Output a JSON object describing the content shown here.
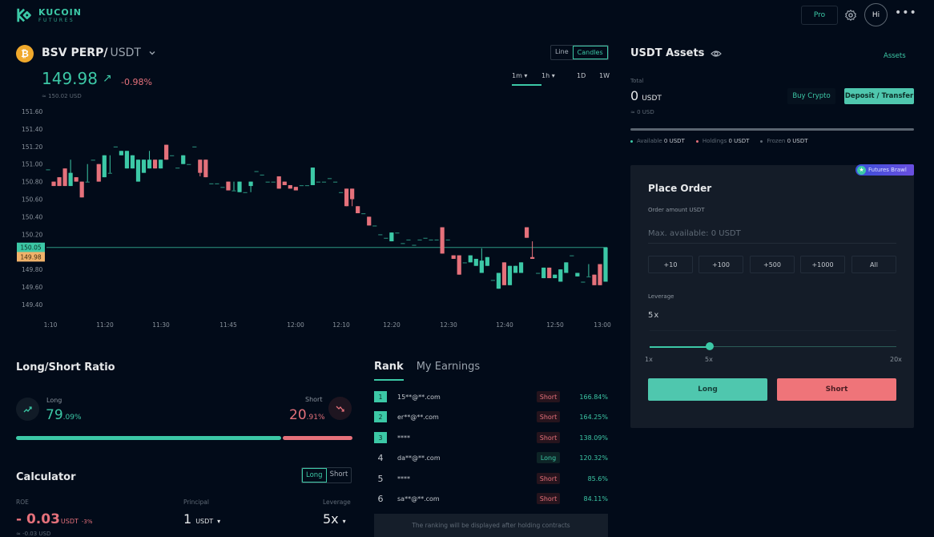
{
  "header": {
    "brand_line1": "KUCOIN",
    "brand_line2": "FUTURES",
    "pro_label": "Pro",
    "avatar_initials": "Hi",
    "more_label": "•••"
  },
  "ticker": {
    "coin_glyph": "₿",
    "base": "BSV PERP/",
    "quote": "USDT",
    "price": "149.98",
    "price_arrow": "↗",
    "change": "-0.98%",
    "usd_equiv": "≈ 150.02 USD"
  },
  "chart_controls": {
    "types": [
      "Line",
      "Candles"
    ],
    "active_type": "Candles",
    "intervals": [
      "1m ▾",
      "1h ▾",
      "1D",
      "1W"
    ],
    "active_interval": "1m"
  },
  "chart_data": {
    "type": "candlestick",
    "title": "BSV PERP/USDT 1m",
    "y_ticks": [
      "151.60",
      "151.40",
      "151.20",
      "151.00",
      "150.80",
      "150.60",
      "150.40",
      "150.20",
      "149.80",
      "149.60",
      "149.40"
    ],
    "x_ticks": [
      "1:10",
      "11:20",
      "11:30",
      "11:45",
      "12:00",
      "12:10",
      "12:20",
      "12:30",
      "12:40",
      "12:50",
      "13:00"
    ],
    "ylim": [
      149.3,
      151.7
    ],
    "price_line": 150.05,
    "price_line_label": "150.05",
    "last_price_label": "149.98",
    "candles": [
      {
        "o": 150.94,
        "c": 150.94,
        "h": 150.94,
        "l": 150.94
      },
      {
        "o": 150.8,
        "c": 150.75,
        "h": 150.8,
        "l": 150.75
      },
      {
        "o": 150.85,
        "c": 150.75,
        "h": 150.85,
        "l": 150.75
      },
      {
        "o": 150.95,
        "c": 150.75,
        "h": 150.95,
        "l": 150.75
      },
      {
        "o": 150.75,
        "c": 150.9,
        "h": 151.05,
        "l": 150.75
      },
      {
        "o": 150.85,
        "c": 150.8,
        "h": 150.85,
        "l": 150.8
      },
      {
        "o": 150.8,
        "c": 150.62,
        "h": 150.8,
        "l": 150.62
      },
      {
        "o": 150.8,
        "c": 150.8,
        "h": 151.0,
        "l": 150.8
      },
      {
        "o": 151.05,
        "c": 151.05,
        "h": 151.05,
        "l": 151.05
      },
      {
        "o": 151.0,
        "c": 150.8,
        "h": 151.0,
        "l": 150.8
      },
      {
        "o": 150.85,
        "c": 151.1,
        "h": 151.1,
        "l": 150.85
      },
      {
        "o": 150.9,
        "c": 150.9,
        "h": 151.1,
        "l": 150.9
      },
      {
        "o": 151.2,
        "c": 151.2,
        "h": 151.2,
        "l": 151.2
      },
      {
        "o": 151.1,
        "c": 151.15,
        "h": 151.15,
        "l": 151.1
      },
      {
        "o": 150.95,
        "c": 151.15,
        "h": 151.15,
        "l": 150.95
      },
      {
        "o": 150.95,
        "c": 151.1,
        "h": 151.1,
        "l": 150.95
      },
      {
        "o": 150.8,
        "c": 151.05,
        "h": 151.05,
        "l": 150.8
      },
      {
        "o": 150.9,
        "c": 151.05,
        "h": 151.05,
        "l": 150.9
      },
      {
        "o": 150.95,
        "c": 151.05,
        "h": 151.15,
        "l": 150.95
      },
      {
        "o": 151.05,
        "c": 150.95,
        "h": 151.05,
        "l": 150.95
      },
      {
        "o": 150.95,
        "c": 151.05,
        "h": 151.05,
        "l": 150.95
      },
      {
        "o": 151.22,
        "c": 151.05,
        "h": 151.22,
        "l": 151.05
      },
      {
        "o": 151.1,
        "c": 151.1,
        "h": 151.1,
        "l": 151.1
      },
      {
        "o": 150.96,
        "c": 150.96,
        "h": 150.96,
        "l": 150.96
      },
      {
        "o": 151.0,
        "c": 151.1,
        "h": 151.1,
        "l": 151.0
      },
      {
        "o": 151.0,
        "c": 151.0,
        "h": 151.0,
        "l": 151.0
      },
      {
        "o": 151.2,
        "c": 151.2,
        "h": 151.2,
        "l": 151.2
      },
      {
        "o": 151.05,
        "c": 150.9,
        "h": 151.05,
        "l": 150.86
      },
      {
        "o": 151.05,
        "c": 150.85,
        "h": 151.05,
        "l": 150.85
      },
      {
        "o": 150.78,
        "c": 150.78,
        "h": 150.78,
        "l": 150.78
      },
      {
        "o": 150.78,
        "c": 150.78,
        "h": 150.78,
        "l": 150.78
      },
      {
        "o": 150.74,
        "c": 150.74,
        "h": 150.74,
        "l": 150.74
      },
      {
        "o": 150.8,
        "c": 150.7,
        "h": 150.8,
        "l": 150.7
      },
      {
        "o": 150.7,
        "c": 150.7,
        "h": 150.8,
        "l": 150.7
      },
      {
        "o": 150.68,
        "c": 150.8,
        "h": 150.8,
        "l": 150.68
      },
      {
        "o": 150.68,
        "c": 150.68,
        "h": 150.68,
        "l": 150.68
      },
      {
        "o": 150.75,
        "c": 150.8,
        "h": 150.8,
        "l": 150.68
      },
      {
        "o": 150.92,
        "c": 150.92,
        "h": 150.92,
        "l": 150.92
      },
      {
        "o": 150.88,
        "c": 150.88,
        "h": 150.88,
        "l": 150.88
      },
      {
        "o": 150.8,
        "c": 150.8,
        "h": 150.8,
        "l": 150.8
      },
      {
        "o": 150.8,
        "c": 150.8,
        "h": 150.8,
        "l": 150.8
      },
      {
        "o": 150.86,
        "c": 150.72,
        "h": 150.86,
        "l": 150.72
      },
      {
        "o": 150.8,
        "c": 150.76,
        "h": 150.8,
        "l": 150.76
      },
      {
        "o": 150.76,
        "c": 150.72,
        "h": 150.76,
        "l": 150.72
      },
      {
        "o": 150.74,
        "c": 150.7,
        "h": 150.74,
        "l": 150.7
      },
      {
        "o": 150.76,
        "c": 150.76,
        "h": 150.76,
        "l": 150.76
      },
      {
        "o": 150.76,
        "c": 150.76,
        "h": 150.76,
        "l": 150.76
      },
      {
        "o": 150.76,
        "c": 150.96,
        "h": 150.96,
        "l": 150.76
      },
      {
        "o": 150.8,
        "c": 150.8,
        "h": 150.8,
        "l": 150.8
      },
      {
        "o": 150.8,
        "c": 150.8,
        "h": 150.8,
        "l": 150.8
      },
      {
        "o": 150.84,
        "c": 150.84,
        "h": 150.84,
        "l": 150.84
      },
      {
        "o": 150.8,
        "c": 150.8,
        "h": 150.8,
        "l": 150.8
      },
      {
        "o": 150.68,
        "c": 150.68,
        "h": 150.68,
        "l": 150.68
      },
      {
        "o": 150.72,
        "c": 150.52,
        "h": 150.72,
        "l": 150.52
      },
      {
        "o": 150.72,
        "c": 150.6,
        "h": 150.72,
        "l": 150.52
      },
      {
        "o": 150.52,
        "c": 150.44,
        "h": 150.52,
        "l": 150.44
      },
      {
        "o": 150.44,
        "c": 150.44,
        "h": 150.44,
        "l": 150.44
      },
      {
        "o": 150.4,
        "c": 150.3,
        "h": 150.4,
        "l": 150.3
      },
      {
        "o": 150.3,
        "c": 150.3,
        "h": 150.3,
        "l": 150.3
      },
      {
        "o": 150.2,
        "c": 150.2,
        "h": 150.2,
        "l": 150.2
      },
      {
        "o": 150.16,
        "c": 150.16,
        "h": 150.16,
        "l": 150.16
      },
      {
        "o": 150.12,
        "c": 150.22,
        "h": 150.22,
        "l": 150.12
      },
      {
        "o": 150.22,
        "c": 150.22,
        "h": 150.22,
        "l": 150.22
      },
      {
        "o": 150.1,
        "c": 150.1,
        "h": 150.1,
        "l": 150.1
      },
      {
        "o": 150.14,
        "c": 150.14,
        "h": 150.14,
        "l": 150.14
      },
      {
        "o": 150.08,
        "c": 150.08,
        "h": 150.08,
        "l": 150.08
      },
      {
        "o": 150.14,
        "c": 150.14,
        "h": 150.14,
        "l": 150.14
      },
      {
        "o": 150.16,
        "c": 150.16,
        "h": 150.16,
        "l": 150.16
      },
      {
        "o": 150.14,
        "c": 150.14,
        "h": 150.14,
        "l": 150.14
      },
      {
        "o": 150.14,
        "c": 150.14,
        "h": 150.14,
        "l": 150.14
      },
      {
        "o": 150.28,
        "c": 149.98,
        "h": 150.28,
        "l": 149.98
      },
      {
        "o": 150.14,
        "c": 150.14,
        "h": 150.14,
        "l": 150.14
      },
      {
        "o": 149.96,
        "c": 149.92,
        "h": 149.96,
        "l": 149.92
      },
      {
        "o": 149.96,
        "c": 149.74,
        "h": 149.96,
        "l": 149.74
      },
      {
        "o": 149.88,
        "c": 149.88,
        "h": 149.88,
        "l": 149.88
      },
      {
        "o": 149.88,
        "c": 149.96,
        "h": 149.96,
        "l": 149.88
      },
      {
        "o": 149.84,
        "c": 149.92,
        "h": 149.92,
        "l": 149.84
      },
      {
        "o": 149.76,
        "c": 149.9,
        "h": 150.04,
        "l": 149.76
      },
      {
        "o": 149.84,
        "c": 149.94,
        "h": 149.94,
        "l": 149.84
      },
      {
        "o": 149.68,
        "c": 149.68,
        "h": 149.68,
        "l": 149.68
      },
      {
        "o": 149.58,
        "c": 149.76,
        "h": 149.76,
        "l": 149.58
      },
      {
        "o": 149.88,
        "c": 149.62,
        "h": 149.88,
        "l": 149.62
      },
      {
        "o": 149.62,
        "c": 149.84,
        "h": 149.84,
        "l": 149.62
      },
      {
        "o": 149.76,
        "c": 149.84,
        "h": 149.84,
        "l": 149.76
      },
      {
        "o": 149.76,
        "c": 149.88,
        "h": 149.88,
        "l": 149.76
      },
      {
        "o": 150.28,
        "c": 150.16,
        "h": 150.28,
        "l": 150.16
      },
      {
        "o": 149.94,
        "c": 149.92,
        "h": 150.12,
        "l": 149.92
      },
      {
        "o": 149.76,
        "c": 149.76,
        "h": 149.76,
        "l": 149.76
      },
      {
        "o": 149.7,
        "c": 149.82,
        "h": 149.82,
        "l": 149.7
      },
      {
        "o": 149.82,
        "c": 149.7,
        "h": 149.82,
        "l": 149.7
      },
      {
        "o": 149.7,
        "c": 149.74,
        "h": 149.74,
        "l": 149.7
      },
      {
        "o": 149.66,
        "c": 149.8,
        "h": 149.8,
        "l": 149.66
      },
      {
        "o": 149.76,
        "c": 149.88,
        "h": 149.88,
        "l": 149.76
      },
      {
        "o": 149.96,
        "c": 149.96,
        "h": 149.96,
        "l": 149.96
      },
      {
        "o": 149.72,
        "c": 149.76,
        "h": 149.76,
        "l": 149.72
      },
      {
        "o": 149.66,
        "c": 149.66,
        "h": 149.66,
        "l": 149.66
      },
      {
        "o": 149.72,
        "c": 149.72,
        "h": 149.86,
        "l": 149.72
      },
      {
        "o": 149.74,
        "c": 149.62,
        "h": 149.74,
        "l": 149.62
      },
      {
        "o": 149.86,
        "c": 149.62,
        "h": 149.86,
        "l": 149.62
      },
      {
        "o": 149.66,
        "c": 150.05,
        "h": 150.05,
        "l": 149.66
      }
    ]
  },
  "long_short": {
    "title": "Long/Short Ratio",
    "long_label": "Long",
    "long_int": "79",
    "long_dec": ".09%",
    "short_label": "Short",
    "short_int": "20",
    "short_dec": ".91%",
    "long_pct": 79.09,
    "short_pct": 20.91
  },
  "calculator": {
    "title": "Calculator",
    "toggle": [
      "Long",
      "Short"
    ],
    "active": "Long",
    "roe_label": "ROE",
    "roe_value": "- 0.03",
    "roe_unit": "USDT",
    "roe_pct": "-3%",
    "roe_usd": "≈ -0.03 USD",
    "principal_label": "Principal",
    "principal_value": "1",
    "principal_unit": "USDT",
    "leverage_label": "Leverage",
    "leverage_value": "5x",
    "caret": "▾"
  },
  "rank": {
    "tabs": [
      "Rank",
      "My Earnings"
    ],
    "active_tab": "Rank",
    "rows": [
      {
        "rank": "1",
        "name": "15**@**.com",
        "side": "Short",
        "pct": "166.84%"
      },
      {
        "rank": "2",
        "name": "er**@**.com",
        "side": "Short",
        "pct": "164.25%"
      },
      {
        "rank": "3",
        "name": "****",
        "side": "Short",
        "pct": "138.09%"
      },
      {
        "rank": "4",
        "name": "da**@**.com",
        "side": "Long",
        "pct": "120.32%"
      },
      {
        "rank": "5",
        "name": "****",
        "side": "Short",
        "pct": "85.6%"
      },
      {
        "rank": "6",
        "name": "sa**@**.com",
        "side": "Short",
        "pct": "84.11%"
      }
    ],
    "note": "The ranking will be displayed after holding contracts"
  },
  "assets": {
    "title": "USDT Assets",
    "link": "Assets",
    "total_label": "Total",
    "total_value": "0",
    "total_unit": "USDT",
    "total_usd": "≈ 0 USD",
    "buy_label": "Buy Crypto",
    "deposit_label": "Deposit / Transfer",
    "available_label": "Available",
    "available_value": "0 USDT",
    "holdings_label": "Holdings",
    "holdings_value": "0 USDT",
    "frozen_label": "Frozen",
    "frozen_value": "0 USDT"
  },
  "place_order": {
    "badge": "Futures Brawl",
    "title": "Place Order",
    "amount_label": "Order amount USDT",
    "amount_placeholder": "Max. available: 0 USDT",
    "quick_amounts": [
      "+10",
      "+100",
      "+500",
      "+1000",
      "All"
    ],
    "leverage_label": "Leverage",
    "leverage_value": "5x",
    "slider_min": "1x",
    "slider_current": "5x",
    "slider_max": "20x",
    "long_label": "Long",
    "short_label": "Short"
  },
  "colors": {
    "up": "#3cc8a6",
    "down": "#e5717b",
    "background": "#020b19",
    "panel": "#141c28",
    "accent": "#3cc8a6",
    "coin": "#f0a92c",
    "last_price_tag": "#f0b26a"
  }
}
